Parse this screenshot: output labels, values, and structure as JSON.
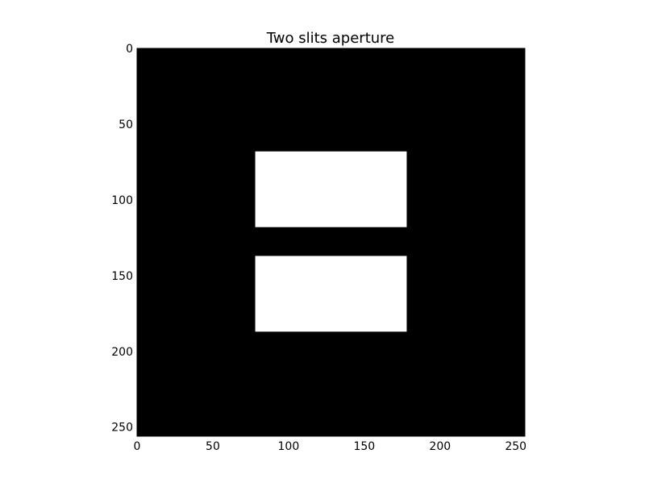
{
  "chart_data": {
    "type": "heatmap",
    "title": "Two slits aperture",
    "xlabel": "",
    "ylabel": "",
    "xlim": [
      0,
      256
    ],
    "ylim": [
      256,
      0
    ],
    "xticks": [
      0,
      50,
      100,
      150,
      200,
      250
    ],
    "yticks": [
      0,
      50,
      100,
      150,
      200,
      250
    ],
    "background_value": 0,
    "colormap": "gray",
    "colors": {
      "background": "#000000",
      "slit": "#ffffff"
    },
    "grid": false,
    "slits": [
      {
        "name": "slit-1",
        "value": 1,
        "x": [
          78,
          178
        ],
        "y": [
          68,
          118
        ]
      },
      {
        "name": "slit-2",
        "value": 1,
        "x": [
          78,
          178
        ],
        "y": [
          137,
          187
        ]
      }
    ]
  }
}
